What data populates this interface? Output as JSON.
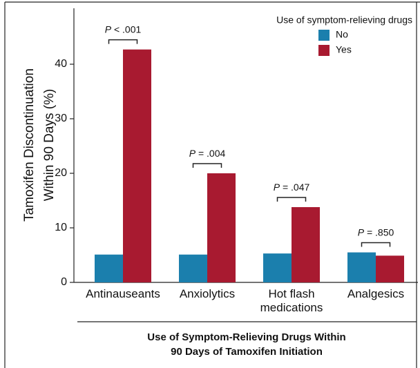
{
  "chart_data": {
    "type": "bar",
    "ylabel": [
      "Tamoxifen Discontinuation",
      "Within 90 Days (%)"
    ],
    "xlabel": [
      "Use of Symptom-Relieving Drugs Within",
      "90 Days of Tamoxifen Initiation"
    ],
    "legend_title": "Use of symptom-relieving drugs",
    "categories": [
      "Antinauseants",
      "Anxiolytics",
      "Hot flash medications",
      "Analgesics"
    ],
    "series": [
      {
        "name": "No",
        "color": "#1b7fad",
        "values": [
          5.1,
          5.1,
          5.3,
          5.5
        ]
      },
      {
        "name": "Yes",
        "color": "#a81a30",
        "values": [
          42.7,
          20.0,
          13.8,
          4.9
        ]
      }
    ],
    "annotations": [
      {
        "symbol": "P",
        "text": "< .001"
      },
      {
        "symbol": "P",
        "text": "= .004"
      },
      {
        "symbol": "P",
        "text": "= .047"
      },
      {
        "symbol": "P",
        "text": "= .850"
      }
    ],
    "ylim": [
      0,
      50
    ],
    "yticks": [
      0,
      10,
      20,
      30,
      40
    ],
    "legend": "upper right"
  }
}
